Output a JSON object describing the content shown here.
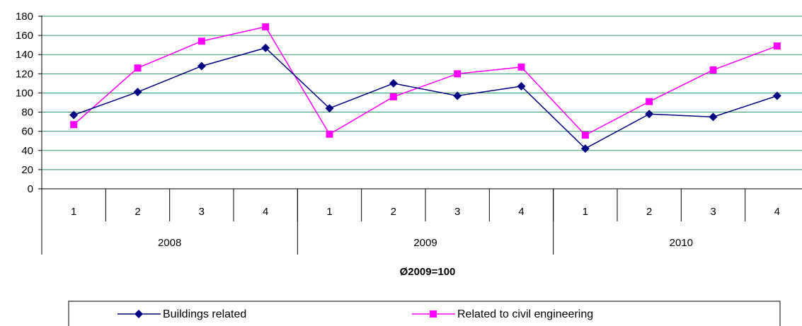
{
  "chart_data": {
    "type": "line",
    "title": "",
    "xlabel": "Ø2009=100",
    "ylabel": "",
    "ylim": [
      0,
      180
    ],
    "yticks": [
      0,
      20,
      40,
      60,
      80,
      100,
      120,
      140,
      160,
      180
    ],
    "grid": true,
    "legend_position": "bottom",
    "categories": [
      "1",
      "2",
      "3",
      "4",
      "1",
      "2",
      "3",
      "4",
      "1",
      "2",
      "3",
      "4"
    ],
    "groups": [
      {
        "label": "2008",
        "span": 4
      },
      {
        "label": "2009",
        "span": 4
      },
      {
        "label": "2010",
        "span": 4
      }
    ],
    "series": [
      {
        "name": "Buildings related",
        "color": "#000080",
        "marker": "diamond",
        "values": [
          77,
          101,
          128,
          147,
          84,
          110,
          97,
          107,
          42,
          78,
          75,
          97
        ]
      },
      {
        "name": "Related to civil engineering",
        "color": "#ff00ff",
        "marker": "square",
        "values": [
          67,
          126,
          154,
          169,
          57,
          96,
          120,
          127,
          56,
          91,
          124,
          149
        ]
      }
    ],
    "colors": {
      "gridline": "#339966",
      "axis": "#000000"
    }
  }
}
